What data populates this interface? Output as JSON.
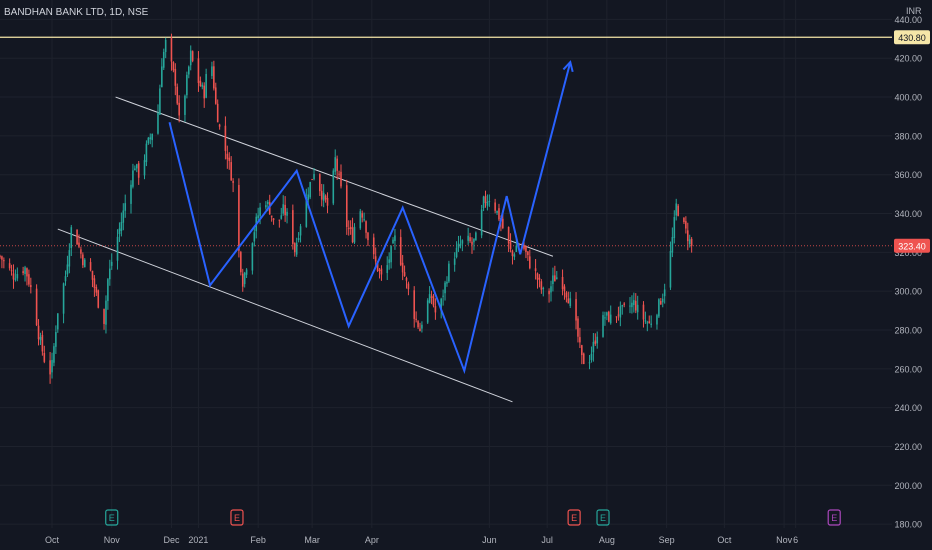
{
  "header": {
    "title": "BANDHAN BANK LTD, 1D, NSE",
    "unit": "INR"
  },
  "colors": {
    "background": "#131722",
    "grid": "#1e222d",
    "up": "#26a69a",
    "down": "#ef5350",
    "pattern": "#2962ff",
    "channel": "#d1d4dc",
    "hline": "#f5e6a8",
    "axis_text": "#b2b5be"
  },
  "chart_data": {
    "type": "candlestick",
    "title": "BANDHAN BANK LTD, 1D, NSE",
    "ylabel": "INR",
    "ylim": [
      178,
      450
    ],
    "y_ticks": [
      180,
      200,
      220,
      240,
      260,
      280,
      300,
      320,
      340,
      360,
      380,
      400,
      420,
      440
    ],
    "x_ticks": [
      "Oct",
      "Nov",
      "Dec",
      "2021",
      "Feb",
      "Mar",
      "Apr",
      "Jun",
      "Jul",
      "Aug",
      "Sep",
      "Oct",
      "Nov",
      "6"
    ],
    "x_tick_days": [
      -76,
      -45,
      -14,
      0,
      31,
      59,
      90,
      151,
      181,
      212,
      243,
      273,
      304,
      310
    ],
    "x_range_days": [
      -103,
      360
    ],
    "price_labels": [
      {
        "text": "430.80",
        "value": 430.8,
        "kind": "horizontal-line"
      },
      {
        "text": "323.40",
        "value": 323.4,
        "kind": "last-price"
      }
    ],
    "horizontal_line": 430.8,
    "last_price": 323.4,
    "earnings_markers": [
      {
        "label": "E",
        "day": -45,
        "status": "past"
      },
      {
        "label": "E",
        "day": 20,
        "status": "past"
      },
      {
        "label": "E",
        "day": 195,
        "status": "past"
      },
      {
        "label": "E",
        "day": 210,
        "status": "past"
      },
      {
        "label": "E",
        "day": 330,
        "status": "upcoming"
      }
    ],
    "price_series": [
      [
        -103,
        318
      ],
      [
        -96,
        308
      ],
      [
        -90,
        312
      ],
      [
        -86,
        298
      ],
      [
        -83,
        278
      ],
      [
        -80,
        265
      ],
      [
        -78,
        255
      ],
      [
        -76,
        262
      ],
      [
        -73,
        290
      ],
      [
        -69,
        308
      ],
      [
        -66,
        332
      ],
      [
        -63,
        326
      ],
      [
        -60,
        316
      ],
      [
        -56,
        310
      ],
      [
        -52,
        294
      ],
      [
        -49,
        285
      ],
      [
        -47,
        306
      ],
      [
        -44,
        320
      ],
      [
        -40,
        336
      ],
      [
        -37,
        350
      ],
      [
        -33,
        365
      ],
      [
        -30,
        358
      ],
      [
        -27,
        374
      ],
      [
        -24,
        382
      ],
      [
        -21,
        392
      ],
      [
        -19,
        418
      ],
      [
        -17,
        428
      ],
      [
        -14,
        416
      ],
      [
        -12,
        408
      ],
      [
        -9,
        378
      ],
      [
        -7,
        402
      ],
      [
        -4,
        422
      ],
      [
        -1,
        410
      ],
      [
        3,
        402
      ],
      [
        6,
        426
      ],
      [
        9,
        396
      ],
      [
        12,
        378
      ],
      [
        15,
        370
      ],
      [
        18,
        355
      ],
      [
        20,
        328
      ],
      [
        23,
        305
      ],
      [
        26,
        318
      ],
      [
        30,
        336
      ],
      [
        34,
        349
      ],
      [
        37,
        342
      ],
      [
        40,
        332
      ],
      [
        44,
        342
      ],
      [
        47,
        337
      ],
      [
        50,
        321
      ],
      [
        53,
        335
      ],
      [
        57,
        352
      ],
      [
        60,
        362
      ],
      [
        64,
        350
      ],
      [
        68,
        342
      ],
      [
        71,
        368
      ],
      [
        74,
        352
      ],
      [
        77,
        334
      ],
      [
        80,
        328
      ],
      [
        83,
        344
      ],
      [
        86,
        338
      ],
      [
        89,
        322
      ],
      [
        93,
        312
      ],
      [
        96,
        305
      ],
      [
        99,
        317
      ],
      [
        102,
        327
      ],
      [
        105,
        316
      ],
      [
        109,
        300
      ],
      [
        112,
        288
      ],
      [
        115,
        280
      ],
      [
        118,
        293
      ],
      [
        121,
        297
      ],
      [
        124,
        285
      ],
      [
        127,
        299
      ],
      [
        130,
        312
      ],
      [
        133,
        319
      ],
      [
        136,
        324
      ],
      [
        139,
        327
      ],
      [
        142,
        324
      ],
      [
        145,
        329
      ],
      [
        148,
        346
      ],
      [
        151,
        348
      ],
      [
        154,
        343
      ],
      [
        157,
        336
      ],
      [
        160,
        326
      ],
      [
        163,
        318
      ],
      [
        166,
        326
      ],
      [
        169,
        322
      ],
      [
        172,
        314
      ],
      [
        175,
        309
      ],
      [
        178,
        301
      ],
      [
        181,
        296
      ],
      [
        184,
        306
      ],
      [
        187,
        308
      ],
      [
        190,
        302
      ],
      [
        193,
        294
      ],
      [
        196,
        282
      ],
      [
        199,
        265
      ],
      [
        202,
        262
      ],
      [
        205,
        272
      ],
      [
        208,
        282
      ],
      [
        211,
        287
      ],
      [
        214,
        286
      ],
      [
        218,
        289
      ],
      [
        222,
        291
      ],
      [
        226,
        294
      ],
      [
        230,
        287
      ],
      [
        234,
        283
      ],
      [
        237,
        288
      ],
      [
        241,
        298
      ],
      [
        244,
        312
      ],
      [
        246,
        327
      ],
      [
        248,
        344
      ],
      [
        251,
        336
      ],
      [
        254,
        328
      ],
      [
        256,
        323.4
      ]
    ],
    "pattern_zigzag": [
      [
        -15,
        387
      ],
      [
        6,
        303
      ],
      [
        51,
        362
      ],
      [
        78,
        282
      ],
      [
        106,
        343
      ],
      [
        138,
        259
      ],
      [
        160,
        349
      ],
      [
        167,
        319
      ],
      [
        193,
        418
      ]
    ],
    "pattern_arrow_tip": [
      193,
      418
    ],
    "channel_upper": [
      [
        -43,
        400
      ],
      [
        184,
        318
      ]
    ],
    "channel_lower": [
      [
        -73,
        332
      ],
      [
        163,
        243
      ]
    ]
  }
}
